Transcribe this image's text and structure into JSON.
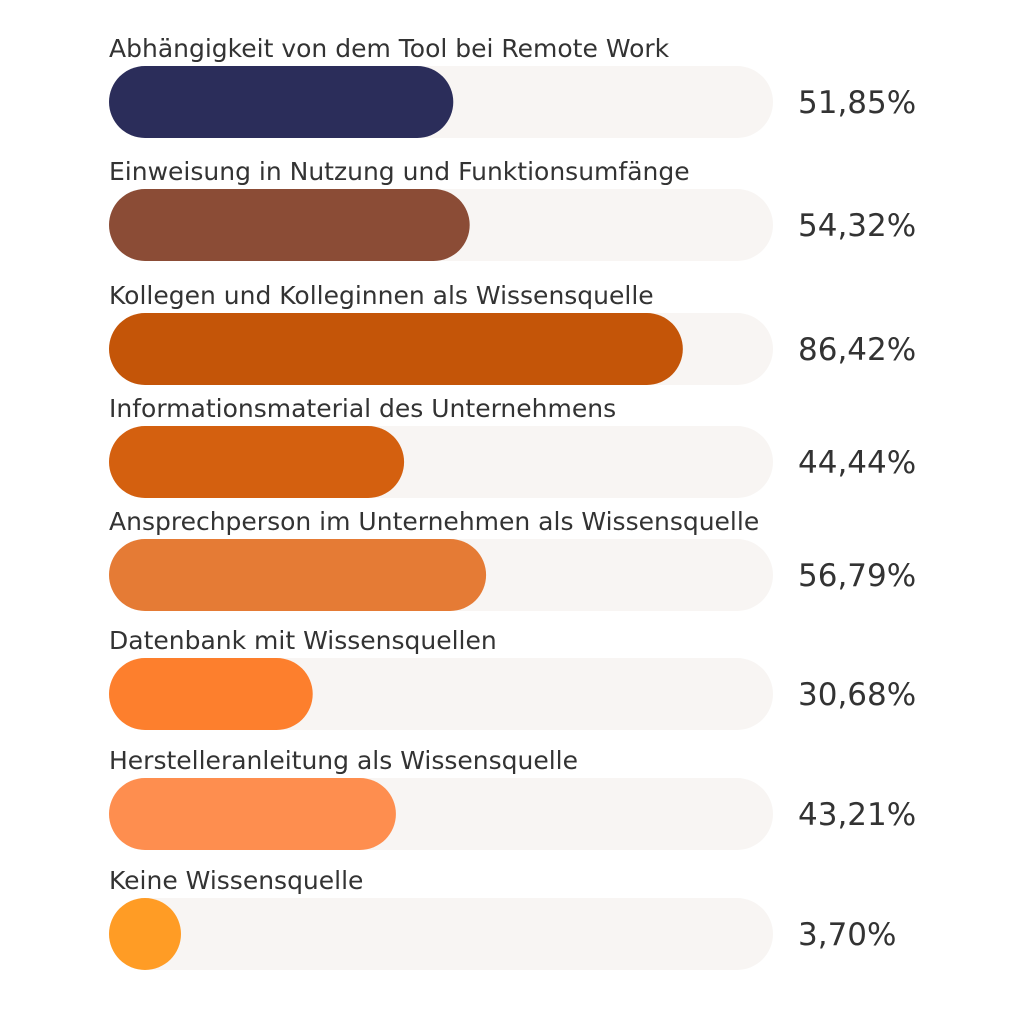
{
  "chart_data": {
    "type": "bar",
    "orientation": "horizontal",
    "categories": [
      "Abhängigkeit von dem Tool bei Remote Work",
      "Einweisung in Nutzung und Funktionsumfänge",
      "Kollegen und Kolleginnen als Wissensquelle",
      "Informationsmaterial des Unternehmens",
      "Ansprechperson im Unternehmen als Wissensquelle",
      "Datenbank mit Wissensquellen",
      "Herstelleranleitung als Wissensquelle",
      "Keine Wissensquelle"
    ],
    "values": [
      51.85,
      54.32,
      86.42,
      44.44,
      56.79,
      30.68,
      43.21,
      3.7
    ],
    "value_labels": [
      "51,85%",
      "54,32%",
      "86,42%",
      "44,44%",
      "56,79%",
      "30,68%",
      "43,21%",
      "3,70%"
    ],
    "colors": [
      "#2b2d5a",
      "#8b4c36",
      "#c45508",
      "#d4600f",
      "#e57b35",
      "#fd7f2d",
      "#fe8e4f",
      "#ff9c25"
    ],
    "track_color": "#f8f5f3",
    "xlim": [
      0,
      100
    ],
    "title": "",
    "xlabel": "",
    "ylabel": "",
    "grid": false,
    "legend": "none"
  }
}
